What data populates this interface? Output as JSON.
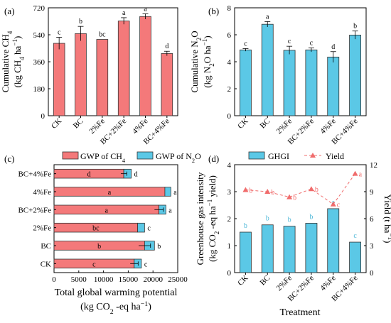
{
  "colors": {
    "ch4": "#f4797a",
    "n2o": "#5bc8e6",
    "yield": "#f06c6c",
    "letter_b": "#4fb8d8"
  },
  "chart_data": [
    {
      "panel": "(a)",
      "type": "bar",
      "ylabel_line1": "Cumulative CH",
      "ylabel_sub1": "4",
      "ylabel_line2": "(kg CH",
      "ylabel_sub2": "4",
      "ylabel_tail": " ha",
      "ylabel_sup": "−1",
      "ylabel_end": ")",
      "ylim": [
        0,
        720
      ],
      "yticks": [
        "0",
        "180",
        "360",
        "540",
        "720"
      ],
      "categories": [
        "CK",
        "BC",
        "2%Fe",
        "BC+2%Fe",
        "4%Fe",
        "BC+4%Fe"
      ],
      "values": [
        483,
        548,
        509,
        632,
        662,
        415
      ],
      "errors": [
        40,
        48,
        0,
        22,
        18,
        15
      ],
      "letters": [
        "c",
        "b",
        "bc",
        "a",
        "a",
        "d"
      ]
    },
    {
      "panel": "(b)",
      "type": "bar",
      "ylabel_line1": "Cumulative N",
      "ylabel_sub1": "2",
      "ylabel_mid1": "O",
      "ylabel_line2": "(kg N",
      "ylabel_sub2": "2",
      "ylabel_tail": "O ha",
      "ylabel_sup": "−1",
      "ylabel_end": ")",
      "ylim": [
        0,
        8
      ],
      "yticks": [
        "0",
        "2",
        "4",
        "6",
        "8"
      ],
      "categories": [
        "CK",
        "BC",
        "2%Fe",
        "BC+2%Fe",
        "4%Fe",
        "BC+4%Fe"
      ],
      "values": [
        4.88,
        6.78,
        4.85,
        4.88,
        4.35,
        5.98
      ],
      "errors": [
        0.1,
        0.2,
        0.3,
        0.15,
        0.4,
        0.3
      ],
      "letters": [
        "c",
        "a",
        "c",
        "c",
        "d",
        "b"
      ]
    },
    {
      "panel": "(c)",
      "type": "bar",
      "orientation": "horizontal",
      "stacked": true,
      "legend": {
        "ch4_text": "GWP of CH",
        "ch4_sub": "4",
        "n2o_text": "GWP of N",
        "n2o_sub": "2",
        "n2o_end": "O"
      },
      "xlabel_line1": "Total global warming potential",
      "xlabel_line2_a": "(kg CO",
      "xlabel_sub": "2",
      "xlabel_line2_b": " -eq ha",
      "xlabel_sup": "−1",
      "xlabel_end": ")",
      "xlim": [
        0,
        25000
      ],
      "xticks": [
        "0",
        "5000",
        "10000",
        "15000",
        "20000",
        "25000"
      ],
      "categories": [
        "BC+4%Fe",
        "4%Fe",
        "BC+2%Fe",
        "2%Fe",
        "BC",
        "CK"
      ],
      "series": [
        {
          "name": "GWP of CH4",
          "values": [
            14100,
            22400,
            21200,
            16900,
            18300,
            16200
          ],
          "letters": [
            "d",
            "a",
            "a",
            "bc",
            "b",
            "c"
          ],
          "errors": [
            600,
            0,
            900,
            0,
            1200,
            800
          ]
        },
        {
          "name": "GWP of N2O",
          "values": [
            1500,
            1200,
            1400,
            1400,
            2000,
            1450
          ],
          "letters": [
            "d",
            "a",
            "a",
            "c",
            "b",
            "c"
          ],
          "errors": [
            0,
            0,
            0,
            0,
            0,
            0
          ]
        }
      ]
    },
    {
      "panel": "(d)",
      "type": "bar",
      "combo": "bar+line",
      "legend": {
        "bar": "GHGI",
        "line": "Yield"
      },
      "ylabel_left_line1": "Greenhouse gas intensity",
      "ylabel_left_line2_a": "(kg CO",
      "ylabel_left_sub": "2",
      "ylabel_left_line2_b": " -eq ha",
      "ylabel_left_sup": "−1",
      "ylabel_left_end": " yield)",
      "ylabel_right_a": "Yield (t ha",
      "ylabel_right_sup": "−1",
      "ylabel_right_end": ")",
      "xlabel": "Treatment",
      "ylim_left": [
        0,
        4
      ],
      "ylim_right": [
        0,
        12
      ],
      "yticks_left": [
        "0",
        "1",
        "2",
        "3",
        "4"
      ],
      "yticks_right": [
        "0",
        "3",
        "6",
        "9",
        "12"
      ],
      "categories": [
        "CK",
        "BC",
        "2%Fe",
        "BC+2%Fe",
        "4%Fe",
        "BC+4%Fe"
      ],
      "bars": {
        "name": "GHGI",
        "values": [
          1.5,
          1.77,
          1.72,
          1.83,
          2.37,
          1.13
        ],
        "letters": [
          "b",
          "b",
          "b",
          "b",
          "a",
          "c"
        ]
      },
      "line": {
        "name": "Yield",
        "values": [
          9.2,
          9.0,
          8.4,
          9.3,
          7.6,
          11.0
        ],
        "letters": [
          "b",
          "b",
          "b",
          "b",
          "c",
          "a"
        ]
      }
    }
  ]
}
